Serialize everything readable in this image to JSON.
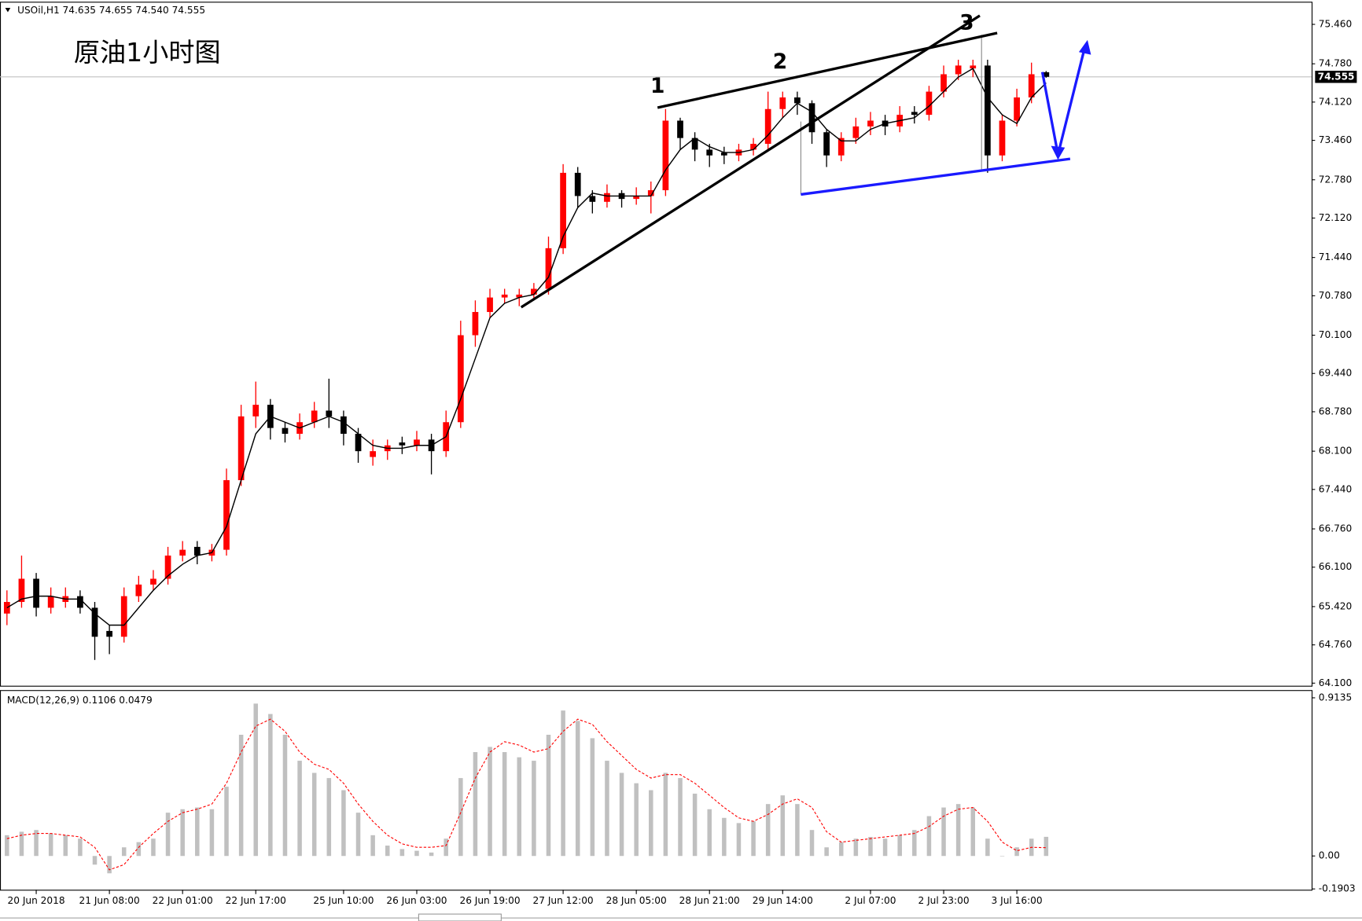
{
  "header": "USOil,H1  74.635 74.655 74.540 74.555",
  "chart_data": [
    {
      "type": "candlestick",
      "title": "原油1小时图",
      "annotations": [
        "1",
        "2",
        "3"
      ],
      "categories": [
        null,
        null,
        "20 Jun 2018",
        null,
        null,
        null,
        null,
        "21 Jun 08:00",
        null,
        null,
        null,
        null,
        "22 Jun 01:00",
        null,
        null,
        null,
        null,
        "22 Jun 17:00",
        null,
        null,
        null,
        null,
        null,
        "25 Jun 10:00",
        null,
        null,
        null,
        null,
        "26 Jun 03:00",
        null,
        null,
        null,
        null,
        "26 Jun 19:00",
        null,
        null,
        null,
        null,
        "27 Jun 12:00",
        null,
        null,
        null,
        null,
        "28 Jun 05:00",
        null,
        null,
        null,
        null,
        "28 Jun 21:00",
        null,
        null,
        null,
        null,
        "29 Jun 14:00",
        null,
        null,
        null,
        null,
        null,
        "2 Jul 07:00",
        null,
        null,
        null,
        null,
        "2 Jul 23:00",
        null,
        null,
        null,
        null,
        "3 Jul 16:00",
        null,
        null
      ],
      "open": [
        65.3,
        65.5,
        65.9,
        65.4,
        65.5,
        65.6,
        65.4,
        65.0,
        64.9,
        65.6,
        65.8,
        65.9,
        66.3,
        66.45,
        66.3,
        66.4,
        67.6,
        68.7,
        68.9,
        68.5,
        68.4,
        68.6,
        68.8,
        68.7,
        68.4,
        68.0,
        68.1,
        68.25,
        68.2,
        68.3,
        68.1,
        68.6,
        70.1,
        70.5,
        70.75,
        70.75,
        70.8,
        70.9,
        71.6,
        72.9,
        72.5,
        72.4,
        72.55,
        72.45,
        72.5,
        72.6,
        73.8,
        73.5,
        73.3,
        73.25,
        73.2,
        73.3,
        73.4,
        74.0,
        74.2,
        74.1,
        73.6,
        73.2,
        73.5,
        73.7,
        73.8,
        73.7,
        73.95,
        73.9,
        74.3,
        74.6,
        74.7,
        74.75,
        73.2,
        73.8,
        74.2,
        74.635
      ],
      "high": [
        65.7,
        66.3,
        66.0,
        65.75,
        65.75,
        65.7,
        65.5,
        65.1,
        65.75,
        65.95,
        66.05,
        66.45,
        66.55,
        66.55,
        66.5,
        67.8,
        68.9,
        69.3,
        69.0,
        68.6,
        68.75,
        68.95,
        69.35,
        68.8,
        68.5,
        68.3,
        68.3,
        68.35,
        68.45,
        68.4,
        68.8,
        70.35,
        70.7,
        70.9,
        70.9,
        70.9,
        71.0,
        71.8,
        73.05,
        73.0,
        72.6,
        72.7,
        72.6,
        72.65,
        72.75,
        74.0,
        73.85,
        73.6,
        73.4,
        73.35,
        73.4,
        73.5,
        74.3,
        74.3,
        74.3,
        74.15,
        73.65,
        73.6,
        73.85,
        73.95,
        73.9,
        74.05,
        74.05,
        74.4,
        74.75,
        74.85,
        74.85,
        74.85,
        73.9,
        74.35,
        74.8,
        74.655
      ],
      "low": [
        65.1,
        65.4,
        65.25,
        65.3,
        65.4,
        65.3,
        64.5,
        64.6,
        64.8,
        65.5,
        65.7,
        65.8,
        66.2,
        66.15,
        66.2,
        66.3,
        67.5,
        68.5,
        68.3,
        68.25,
        68.3,
        68.5,
        68.5,
        68.2,
        67.9,
        67.85,
        67.95,
        68.05,
        68.1,
        67.7,
        68.0,
        68.5,
        69.9,
        70.4,
        70.65,
        70.6,
        70.7,
        70.8,
        71.5,
        72.3,
        72.2,
        72.3,
        72.3,
        72.35,
        72.2,
        72.5,
        73.3,
        73.1,
        73.0,
        73.05,
        73.1,
        73.2,
        73.3,
        73.85,
        73.9,
        73.4,
        73.0,
        73.1,
        73.4,
        73.55,
        73.55,
        73.6,
        73.75,
        73.8,
        74.2,
        74.5,
        74.55,
        72.9,
        73.1,
        73.7,
        74.1,
        74.54
      ],
      "close": [
        65.5,
        65.9,
        65.4,
        65.6,
        65.6,
        65.4,
        64.9,
        64.9,
        65.6,
        65.8,
        65.9,
        66.3,
        66.4,
        66.3,
        66.4,
        67.6,
        68.7,
        68.9,
        68.5,
        68.4,
        68.6,
        68.8,
        68.7,
        68.4,
        68.1,
        68.1,
        68.2,
        68.2,
        68.3,
        68.1,
        68.6,
        70.1,
        70.5,
        70.75,
        70.8,
        70.8,
        70.9,
        71.6,
        72.9,
        72.5,
        72.4,
        72.55,
        72.45,
        72.5,
        72.6,
        73.8,
        73.5,
        73.3,
        73.2,
        73.2,
        73.3,
        73.4,
        74.0,
        74.2,
        74.1,
        73.6,
        73.2,
        73.5,
        73.7,
        73.8,
        73.7,
        73.9,
        73.9,
        74.3,
        74.6,
        74.75,
        74.75,
        73.2,
        73.8,
        74.2,
        74.6,
        74.555
      ],
      "up_color": "#ff0000",
      "down_color": "#000000",
      "series": [
        {
          "color": "#000000",
          "values": [
            65.4,
            65.55,
            65.6,
            65.6,
            65.55,
            65.55,
            65.3,
            65.1,
            65.1,
            65.4,
            65.7,
            65.95,
            66.15,
            66.3,
            66.35,
            66.8,
            67.6,
            68.4,
            68.7,
            68.6,
            68.5,
            68.6,
            68.7,
            68.6,
            68.4,
            68.2,
            68.15,
            68.15,
            68.2,
            68.2,
            68.35,
            69.0,
            69.7,
            70.4,
            70.65,
            70.75,
            70.8,
            71.1,
            71.8,
            72.3,
            72.55,
            72.5,
            72.5,
            72.5,
            72.5,
            72.95,
            73.3,
            73.5,
            73.35,
            73.25,
            73.25,
            73.3,
            73.55,
            73.85,
            74.1,
            73.95,
            73.65,
            73.45,
            73.45,
            73.65,
            73.75,
            73.8,
            73.85,
            74.05,
            74.3,
            74.55,
            74.7,
            74.2,
            73.9,
            73.75,
            74.2,
            74.45
          ]
        }
      ],
      "last_price": {
        "value": 74.555,
        "label": "74.555"
      },
      "ylim": [
        64.055,
        75.835
      ],
      "yticks": [
        {
          "value": 75.46,
          "label": "75.460"
        },
        {
          "value": 74.78,
          "label": "74.780"
        },
        {
          "value": 74.12,
          "label": "74.120"
        },
        {
          "value": 73.46,
          "label": "73.460"
        },
        {
          "value": 72.78,
          "label": "72.780"
        },
        {
          "value": 72.12,
          "label": "72.120"
        },
        {
          "value": 71.44,
          "label": "71.440"
        },
        {
          "value": 70.78,
          "label": "70.780"
        },
        {
          "value": 70.1,
          "label": "70.100"
        },
        {
          "value": 69.44,
          "label": "69.440"
        },
        {
          "value": 68.78,
          "label": "68.780"
        },
        {
          "value": 68.1,
          "label": "68.100"
        },
        {
          "value": 67.44,
          "label": "67.440"
        },
        {
          "value": 66.76,
          "label": "66.760"
        },
        {
          "value": 66.1,
          "label": "66.100"
        },
        {
          "value": 65.42,
          "label": "65.420"
        },
        {
          "value": 64.76,
          "label": "64.760"
        },
        {
          "value": 64.1,
          "label": "64.100"
        }
      ]
    },
    {
      "type": "macd",
      "title": "MACD(12,26,9) 0.1106 0.0479",
      "series": [
        {
          "style": "histogram",
          "color": "#c0c0c0",
          "values": [
            0.12,
            0.14,
            0.15,
            0.13,
            0.12,
            0.1,
            -0.05,
            -0.1,
            0.05,
            0.08,
            0.1,
            0.25,
            0.27,
            0.28,
            0.27,
            0.4,
            0.7,
            0.88,
            0.82,
            0.7,
            0.55,
            0.48,
            0.45,
            0.38,
            0.25,
            0.12,
            0.06,
            0.04,
            0.03,
            0.02,
            0.1,
            0.45,
            0.6,
            0.63,
            0.6,
            0.57,
            0.55,
            0.7,
            0.84,
            0.78,
            0.68,
            0.55,
            0.48,
            0.42,
            0.38,
            0.48,
            0.45,
            0.36,
            0.27,
            0.22,
            0.19,
            0.2,
            0.3,
            0.35,
            0.3,
            0.15,
            0.05,
            0.08,
            0.1,
            0.11,
            0.1,
            0.12,
            0.15,
            0.23,
            0.28,
            0.3,
            0.28,
            0.1,
            0.0,
            0.05,
            0.1,
            0.1106
          ]
        },
        {
          "style": "dashed-line",
          "color": "#ff0000",
          "values": [
            0.1,
            0.12,
            0.13,
            0.13,
            0.12,
            0.11,
            0.05,
            -0.08,
            -0.05,
            0.05,
            0.13,
            0.2,
            0.25,
            0.27,
            0.3,
            0.42,
            0.6,
            0.75,
            0.79,
            0.72,
            0.6,
            0.53,
            0.5,
            0.42,
            0.3,
            0.2,
            0.12,
            0.07,
            0.05,
            0.05,
            0.06,
            0.25,
            0.45,
            0.6,
            0.66,
            0.64,
            0.6,
            0.62,
            0.72,
            0.79,
            0.76,
            0.66,
            0.58,
            0.5,
            0.45,
            0.47,
            0.47,
            0.42,
            0.35,
            0.28,
            0.22,
            0.2,
            0.24,
            0.3,
            0.33,
            0.28,
            0.14,
            0.08,
            0.09,
            0.1,
            0.11,
            0.12,
            0.13,
            0.17,
            0.23,
            0.27,
            0.28,
            0.2,
            0.08,
            0.03,
            0.05,
            0.0479
          ]
        }
      ],
      "ylim": [
        -0.195,
        0.953
      ],
      "yticks": [
        {
          "value": 0.9135,
          "label": "0.9135"
        },
        {
          "value": 0,
          "label": "0.00"
        },
        {
          "value": -0.1903,
          "label": "-0.1903"
        }
      ]
    }
  ]
}
